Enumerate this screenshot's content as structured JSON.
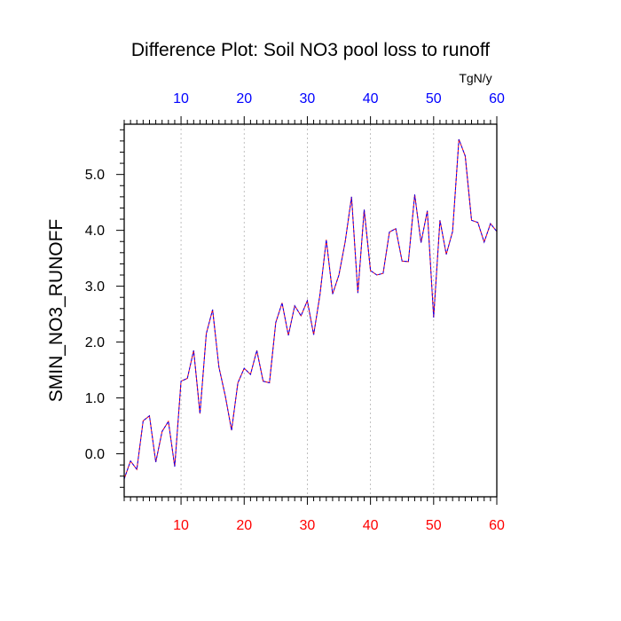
{
  "chart_data": {
    "type": "line",
    "title": "Difference Plot: Soil NO3 pool loss to runoff",
    "units": "TgN/y",
    "ylabel": "SMIN_NO3_RUNOFF",
    "xlabel": "",
    "xlim": [
      1,
      60
    ],
    "ylim": [
      -0.77,
      5.9
    ],
    "x_ticks": [
      "10",
      "20",
      "30",
      "40",
      "50",
      "60"
    ],
    "y_ticks": [
      "0.0",
      "1.0",
      "2.0",
      "3.0",
      "4.0",
      "5.0"
    ],
    "grid": "vertical dashed at major x ticks",
    "colors": {
      "bottom_tick_labels": "#ff0000",
      "top_tick_labels": "#0000ff",
      "line_a": "#ff0000",
      "line_b": "#0000ff"
    },
    "series": [
      {
        "values": [
          -0.45,
          -0.13,
          -0.28,
          0.59,
          0.68,
          -0.15,
          0.4,
          0.58,
          -0.23,
          1.3,
          1.35,
          1.85,
          0.72,
          2.15,
          2.58,
          1.55,
          1.04,
          0.42,
          1.27,
          1.53,
          1.42,
          1.85,
          1.3,
          1.27,
          2.35,
          2.7,
          2.12,
          2.65,
          2.47,
          2.74,
          2.13,
          2.85,
          3.83,
          2.86,
          3.2,
          3.8,
          4.6,
          2.88,
          4.37,
          3.28,
          3.2,
          3.23,
          3.97,
          4.03,
          3.45,
          3.44,
          4.64,
          3.78,
          4.35,
          2.44,
          4.18,
          3.57,
          3.98,
          5.63,
          5.33,
          4.18,
          4.14,
          3.79,
          4.12,
          3.98
        ]
      }
    ]
  }
}
